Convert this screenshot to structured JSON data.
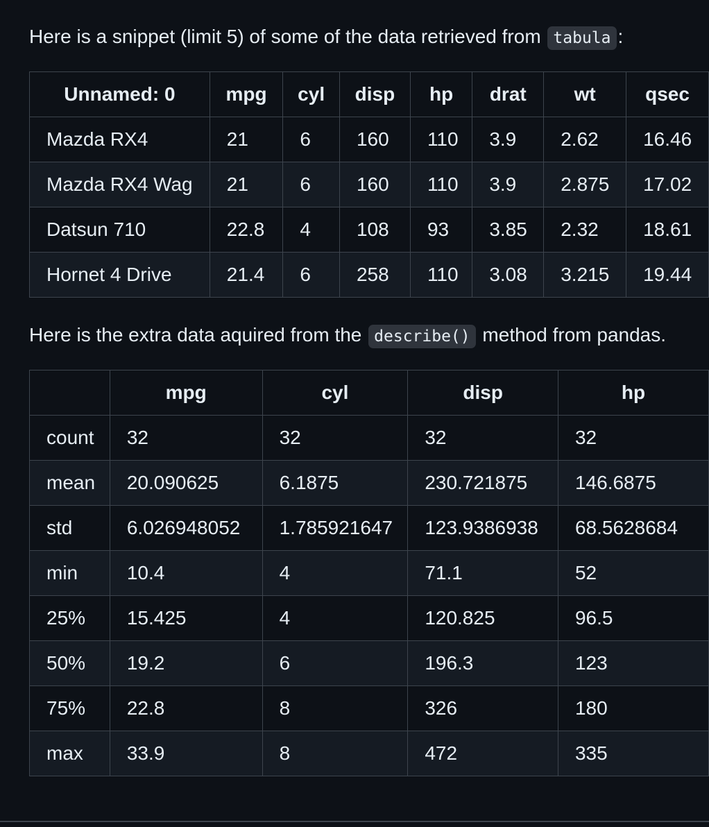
{
  "intro": {
    "before": "Here is a snippet (limit 5) of some of the data retrieved from",
    "code": "tabula",
    "after": ":"
  },
  "snippet_table": {
    "headers": [
      "Unnamed: 0",
      "mpg",
      "cyl",
      "disp",
      "hp",
      "drat",
      "wt",
      "qsec"
    ],
    "rows": [
      [
        "Mazda RX4",
        "21",
        "6",
        "160",
        "110",
        "3.9",
        "2.62",
        "16.46"
      ],
      [
        "Mazda RX4 Wag",
        "21",
        "6",
        "160",
        "110",
        "3.9",
        "2.875",
        "17.02"
      ],
      [
        "Datsun 710",
        "22.8",
        "4",
        "108",
        "93",
        "3.85",
        "2.32",
        "18.61"
      ],
      [
        "Hornet 4 Drive",
        "21.4",
        "6",
        "258",
        "110",
        "3.08",
        "3.215",
        "19.44"
      ]
    ]
  },
  "describe_intro": {
    "before": "Here is the extra data aquired from the",
    "code": "describe()",
    "after": "method from pandas."
  },
  "describe_table": {
    "headers": [
      "",
      "mpg",
      "cyl",
      "disp",
      "hp"
    ],
    "rows": [
      [
        "count",
        "32",
        "32",
        "32",
        "32"
      ],
      [
        "mean",
        "20.090625",
        "6.1875",
        "230.721875",
        "146.6875"
      ],
      [
        "std",
        "6.026948052",
        "1.785921647",
        "123.9386938",
        "68.5628684"
      ],
      [
        "min",
        "10.4",
        "4",
        "71.1",
        "52"
      ],
      [
        "25%",
        "15.425",
        "4",
        "120.825",
        "96.5"
      ],
      [
        "50%",
        "19.2",
        "6",
        "196.3",
        "123"
      ],
      [
        "75%",
        "22.8",
        "8",
        "326",
        "180"
      ],
      [
        "max",
        "33.9",
        "8",
        "472",
        "335"
      ]
    ]
  }
}
